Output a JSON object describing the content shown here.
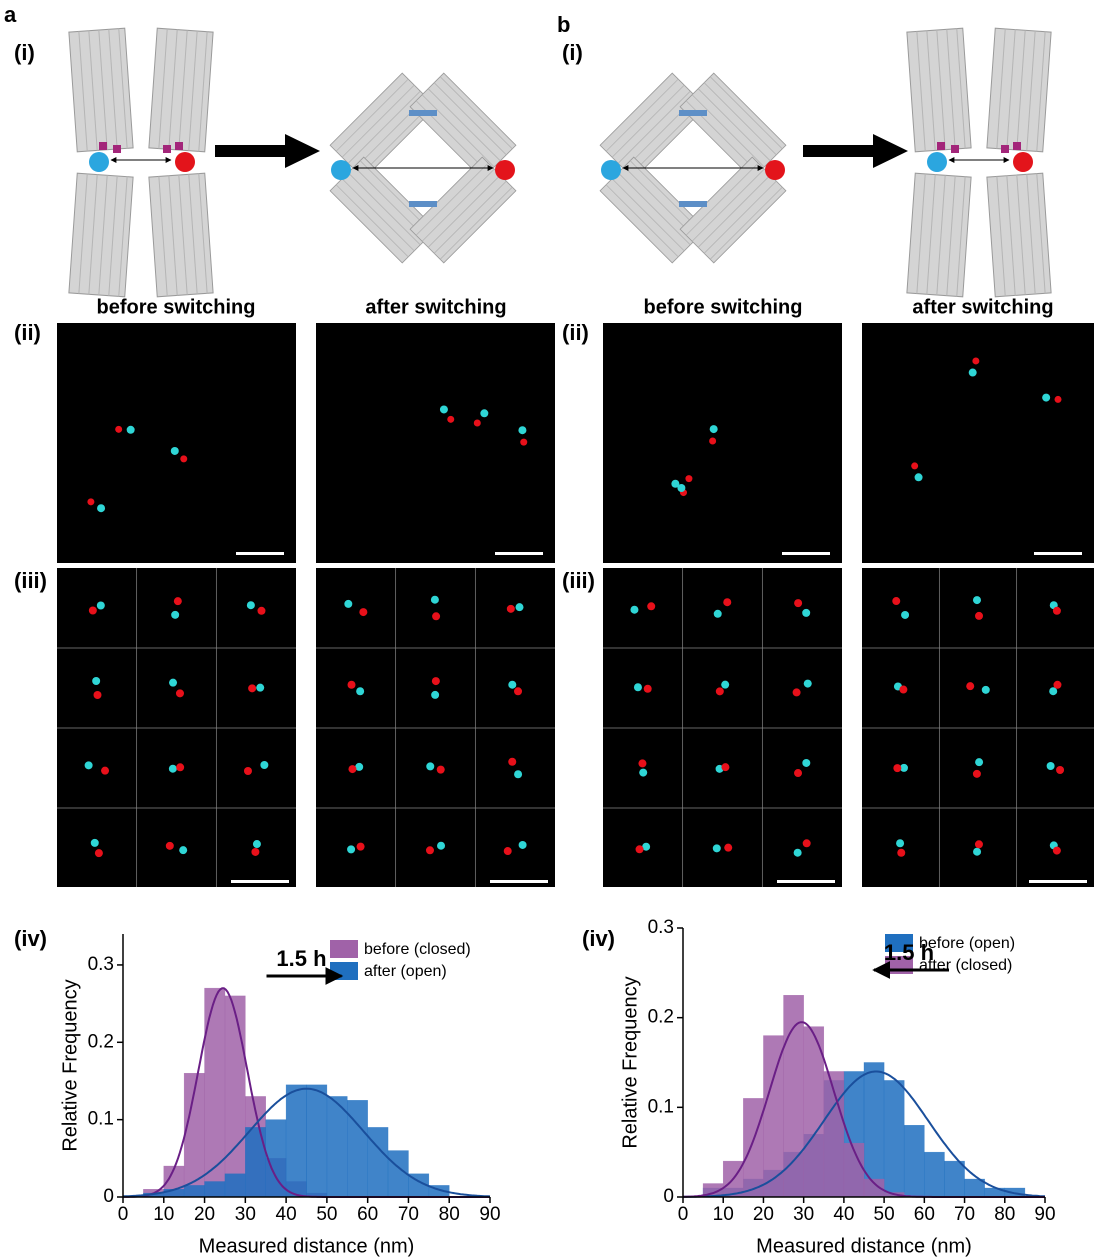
{
  "panels": {
    "a": {
      "label": "a",
      "i": "(i)",
      "ii": "(ii)",
      "iii": "(iii)",
      "iv": "(iv)",
      "before": "before switching",
      "after": "after switching"
    },
    "b": {
      "label": "b",
      "i": "(i)",
      "ii": "(ii)",
      "iii": "(iii)",
      "iv": "(iv)",
      "before": "before switching",
      "after": "after switching"
    }
  },
  "chart_data": [
    {
      "type": "histogram",
      "xlabel": "Measured distance (nm)",
      "ylabel": "Relative Frequency",
      "annotation": {
        "text": "1.5 h",
        "direction": "right"
      },
      "legend": "top-right",
      "bins": [
        5,
        10,
        15,
        20,
        25,
        30,
        35,
        40,
        45,
        50,
        55,
        60,
        65,
        70,
        75,
        80
      ],
      "series": [
        {
          "name": "before (closed)",
          "color": "#a062a8",
          "fit_color": "#6a1f86",
          "values": [
            0.01,
            0.04,
            0.16,
            0.27,
            0.26,
            0.13,
            0.05,
            0.02,
            0.005,
            0,
            0,
            0,
            0,
            0,
            0
          ],
          "fit": {
            "mean": 24.5,
            "sd": 6,
            "peak": 0.27
          }
        },
        {
          "name": "after (open)",
          "color": "#1f6fbf",
          "fit_color": "#1a4f9c",
          "values": [
            0.005,
            0.01,
            0.015,
            0.02,
            0.03,
            0.09,
            0.1,
            0.145,
            0.145,
            0.13,
            0.125,
            0.09,
            0.06,
            0.03,
            0.015
          ],
          "fit": {
            "mean": 45,
            "sd": 14,
            "peak": 0.14
          }
        }
      ],
      "xlim": [
        0,
        90
      ],
      "xticks": [
        0,
        10,
        20,
        30,
        40,
        50,
        60,
        70,
        80,
        90
      ],
      "ylim": [
        0,
        0.34
      ],
      "yticks": [
        0,
        0.1,
        0.2,
        0.3
      ]
    },
    {
      "type": "histogram",
      "xlabel": "Measured distance (nm)",
      "ylabel": "Relative Frequency",
      "annotation": {
        "text": "1.5 h",
        "direction": "left"
      },
      "legend": "top-right",
      "bins": [
        5,
        10,
        15,
        20,
        25,
        30,
        35,
        40,
        45,
        50,
        55,
        60,
        65,
        70,
        75,
        80,
        85
      ],
      "series": [
        {
          "name": "before (open)",
          "color": "#1f6fbf",
          "fit_color": "#1a4f9c",
          "values": [
            0.01,
            0.01,
            0.02,
            0.03,
            0.05,
            0.07,
            0.13,
            0.14,
            0.15,
            0.13,
            0.08,
            0.05,
            0.04,
            0.02,
            0.01,
            0.01
          ],
          "fit": {
            "mean": 48,
            "sd": 13,
            "peak": 0.14
          }
        },
        {
          "name": "after (closed)",
          "color": "#a062a8",
          "fit_color": "#6a1f86",
          "values": [
            0.015,
            0.04,
            0.11,
            0.18,
            0.225,
            0.19,
            0.14,
            0.06,
            0.02,
            0.005,
            0,
            0,
            0,
            0,
            0,
            0
          ],
          "fit": {
            "mean": 29.5,
            "sd": 8,
            "peak": 0.195
          }
        }
      ],
      "xlim": [
        0,
        90
      ],
      "xticks": [
        0,
        10,
        20,
        30,
        40,
        50,
        60,
        70,
        80,
        90
      ],
      "ylim": [
        0,
        0.3
      ],
      "yticks": [
        0,
        0.1,
        0.2,
        0.3
      ]
    }
  ]
}
